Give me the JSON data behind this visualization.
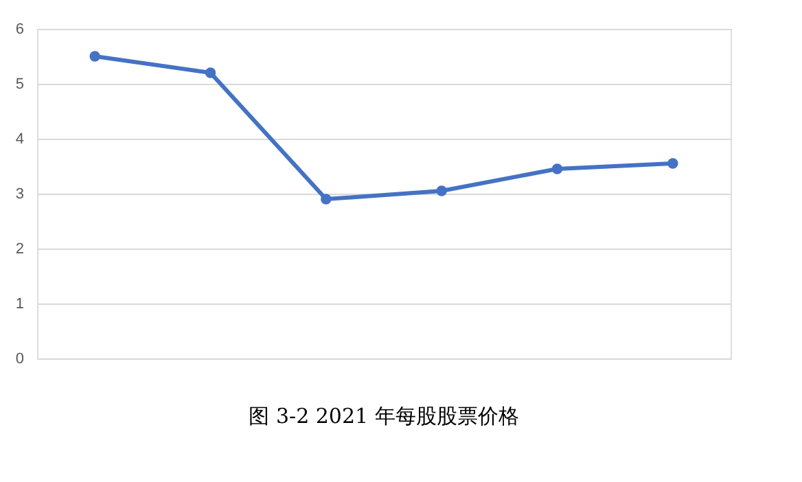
{
  "chart_data": {
    "type": "line",
    "categories": [
      null,
      null,
      null,
      null,
      null,
      null
    ],
    "series": [
      {
        "color": "#4472c4",
        "values": [
          5.5,
          5.2,
          2.9,
          3.05,
          3.45,
          3.55
        ]
      }
    ],
    "ylim": [
      0,
      6
    ],
    "yticks": [
      0,
      1,
      2,
      3,
      4,
      5,
      6
    ],
    "grid": "y",
    "marker": "circle",
    "line_style": "solid",
    "tick_labels": "y",
    "legend": false,
    "annotations": [
      "图 3-2 2021 年每股股票价格"
    ]
  }
}
